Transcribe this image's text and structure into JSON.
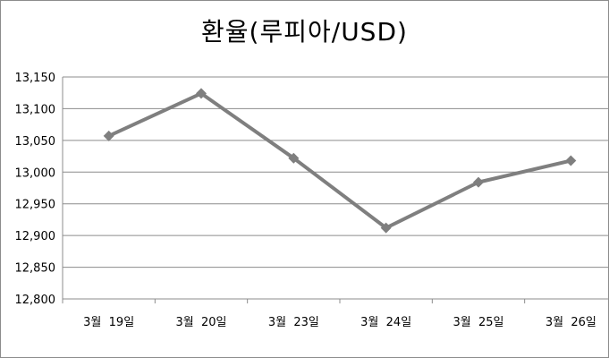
{
  "chart_data": {
    "type": "line",
    "title": "환율(루피아/USD)",
    "xlabel": "",
    "ylabel": "",
    "categories": [
      "3월  19일",
      "3월  20일",
      "3월  23일",
      "3월  24일",
      "3월  25일",
      "3월  26일"
    ],
    "series": [
      {
        "values": [
          13057,
          13124,
          13022,
          12912,
          12984,
          13018
        ],
        "color": "#7f7f7f",
        "marker": "diamond"
      }
    ],
    "ylim": [
      12800,
      13150
    ],
    "yticks": [
      12800,
      12850,
      12900,
      12950,
      13000,
      13050,
      13100,
      13150
    ],
    "ytick_labels": [
      "12,800",
      "12,850",
      "12,900",
      "12,950",
      "13,000",
      "13,050",
      "13,100",
      "13,150"
    ],
    "grid": true,
    "legend": "none"
  }
}
